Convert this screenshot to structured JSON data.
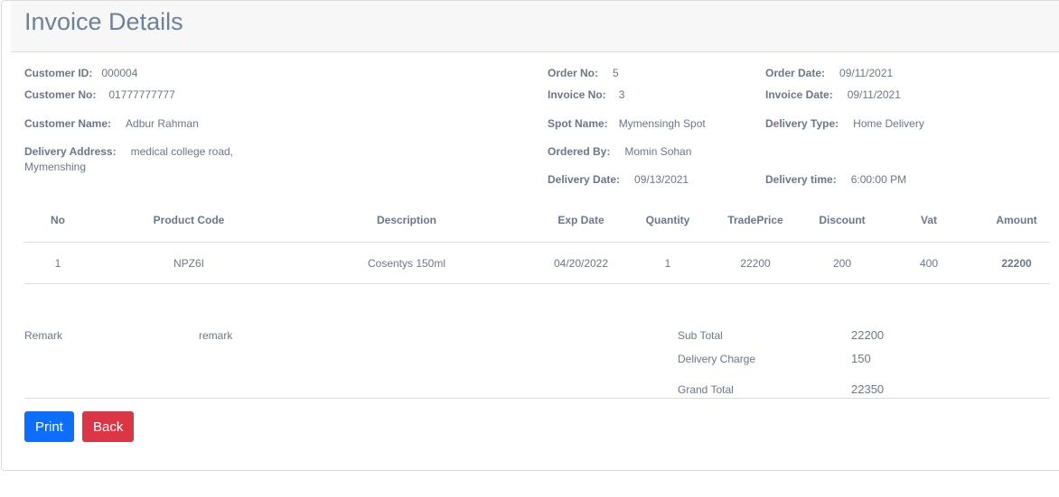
{
  "title": "Invoice Details",
  "info": {
    "customer_id": {
      "label": "Customer ID:",
      "value": "000004"
    },
    "customer_no": {
      "label": "Customer No:",
      "value": "01777777777"
    },
    "customer_name": {
      "label": "Customer Name:",
      "value": "Adbur Rahman"
    },
    "delivery_address": {
      "label": "Delivery Address:",
      "value": "medical college road,",
      "value2": "Mymenshing"
    },
    "order_no": {
      "label": "Order No:",
      "value": "5"
    },
    "invoice_no": {
      "label": "Invoice No:",
      "value": "3"
    },
    "spot_name": {
      "label": "Spot Name:",
      "value": "Mymensingh Spot"
    },
    "ordered_by": {
      "label": "Ordered By:",
      "value": "Momin Sohan"
    },
    "delivery_date": {
      "label": "Delivery Date:",
      "value": "09/13/2021"
    },
    "order_date": {
      "label": "Order Date:",
      "value": "09/11/2021"
    },
    "invoice_date": {
      "label": "Invoice Date:",
      "value": "09/11/2021"
    },
    "delivery_type": {
      "label": "Delivery Type:",
      "value": "Home Delivery"
    },
    "delivery_time": {
      "label": "Delivery time:",
      "value": "6:00:00 PM"
    }
  },
  "table": {
    "headers": [
      "No",
      "Product Code",
      "Description",
      "Exp Date",
      "Quantity",
      "TradePrice",
      "Discount",
      "Vat",
      "Amount"
    ],
    "rows": [
      [
        "1",
        "NPZ6I",
        "Cosentys 150ml",
        "04/20/2022",
        "1",
        "22200",
        "200",
        "400",
        "22200"
      ]
    ]
  },
  "remark": {
    "label": "Remark",
    "value": "remark"
  },
  "totals": {
    "sub_total": {
      "label": "Sub Total",
      "value": "22200"
    },
    "delivery_charge": {
      "label": "Delivery Charge",
      "value": "150"
    },
    "grand_total": {
      "label": "Grand Total",
      "value": "22350"
    }
  },
  "buttons": {
    "print": "Print",
    "back": "Back"
  },
  "colors": {
    "print": "#0d6efd",
    "back": "#dc3545"
  }
}
